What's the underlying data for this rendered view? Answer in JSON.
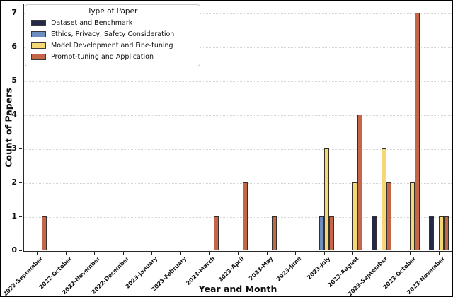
{
  "figure": {
    "xlabel": "Year and Month",
    "ylabel": "Count of Papers",
    "legend_title": "Type of Paper"
  },
  "chart_data": {
    "type": "bar",
    "grouped": true,
    "title": "",
    "xlabel": "Year and Month",
    "ylabel": "Count of Papers",
    "categories": [
      "2022-September",
      "2022-October",
      "2022-November",
      "2022-December",
      "2023-January",
      "2023-February",
      "2023-March",
      "2023-April",
      "2023-May",
      "2023-June",
      "2023-July",
      "2023-August",
      "2023-September",
      "2023-October",
      "2023-November"
    ],
    "series": [
      {
        "name": "Dataset and Benchmark",
        "color": "#242947",
        "values": [
          0,
          0,
          0,
          0,
          0,
          0,
          0,
          0,
          0,
          0,
          0,
          0,
          1,
          0,
          1
        ]
      },
      {
        "name": "Ethics, Privacy, Safety Consideration",
        "color": "#6d8dc0",
        "values": [
          0,
          0,
          0,
          0,
          0,
          0,
          0,
          0,
          0,
          0,
          1,
          0,
          0,
          0,
          0
        ]
      },
      {
        "name": "Model Development and Fine-tuning",
        "color": "#f5d776",
        "values": [
          0,
          0,
          0,
          0,
          0,
          0,
          0,
          0,
          0,
          0,
          3,
          2,
          3,
          2,
          1
        ]
      },
      {
        "name": "Prompt-tuning and Application",
        "color": "#c4664a",
        "values": [
          1,
          0,
          0,
          0,
          0,
          0,
          1,
          2,
          1,
          0,
          1,
          4,
          2,
          7,
          1
        ]
      }
    ],
    "yticks": [
      0,
      1,
      2,
      3,
      4,
      5,
      6,
      7
    ],
    "ylim": [
      0,
      7.27
    ],
    "grid": "horizontal dotted",
    "legend": {
      "title": "Type of Paper",
      "position": "upper-left"
    }
  }
}
